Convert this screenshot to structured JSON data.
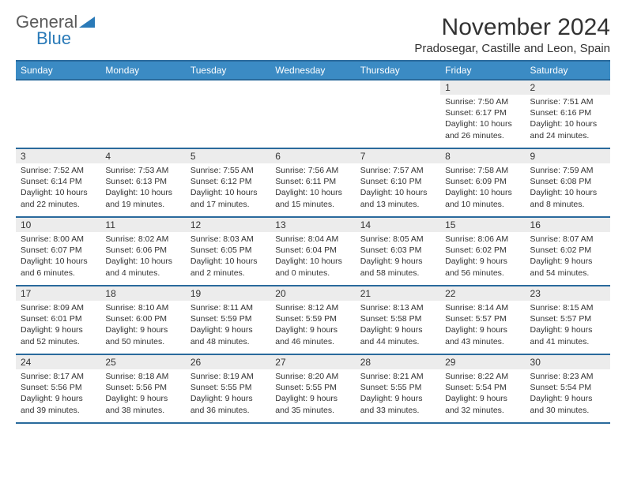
{
  "logo": {
    "line1": "General",
    "line2": "Blue"
  },
  "header": {
    "month_title": "November 2024",
    "location": "Pradosegar, Castille and Leon, Spain"
  },
  "day_headers": [
    "Sunday",
    "Monday",
    "Tuesday",
    "Wednesday",
    "Thursday",
    "Friday",
    "Saturday"
  ],
  "colors": {
    "header_bg": "#3b8bc4",
    "header_border": "#2a6a9c",
    "day_num_bg": "#ececec",
    "text": "#333333",
    "logo_gray": "#5a5a5a",
    "logo_blue": "#2a7ab8"
  },
  "weeks": [
    {
      "nums": [
        "",
        "",
        "",
        "",
        "",
        "1",
        "2"
      ],
      "cells": [
        null,
        null,
        null,
        null,
        null,
        {
          "sunrise": "Sunrise: 7:50 AM",
          "sunset": "Sunset: 6:17 PM",
          "daylight": "Daylight: 10 hours and 26 minutes."
        },
        {
          "sunrise": "Sunrise: 7:51 AM",
          "sunset": "Sunset: 6:16 PM",
          "daylight": "Daylight: 10 hours and 24 minutes."
        }
      ]
    },
    {
      "nums": [
        "3",
        "4",
        "5",
        "6",
        "7",
        "8",
        "9"
      ],
      "cells": [
        {
          "sunrise": "Sunrise: 7:52 AM",
          "sunset": "Sunset: 6:14 PM",
          "daylight": "Daylight: 10 hours and 22 minutes."
        },
        {
          "sunrise": "Sunrise: 7:53 AM",
          "sunset": "Sunset: 6:13 PM",
          "daylight": "Daylight: 10 hours and 19 minutes."
        },
        {
          "sunrise": "Sunrise: 7:55 AM",
          "sunset": "Sunset: 6:12 PM",
          "daylight": "Daylight: 10 hours and 17 minutes."
        },
        {
          "sunrise": "Sunrise: 7:56 AM",
          "sunset": "Sunset: 6:11 PM",
          "daylight": "Daylight: 10 hours and 15 minutes."
        },
        {
          "sunrise": "Sunrise: 7:57 AM",
          "sunset": "Sunset: 6:10 PM",
          "daylight": "Daylight: 10 hours and 13 minutes."
        },
        {
          "sunrise": "Sunrise: 7:58 AM",
          "sunset": "Sunset: 6:09 PM",
          "daylight": "Daylight: 10 hours and 10 minutes."
        },
        {
          "sunrise": "Sunrise: 7:59 AM",
          "sunset": "Sunset: 6:08 PM",
          "daylight": "Daylight: 10 hours and 8 minutes."
        }
      ]
    },
    {
      "nums": [
        "10",
        "11",
        "12",
        "13",
        "14",
        "15",
        "16"
      ],
      "cells": [
        {
          "sunrise": "Sunrise: 8:00 AM",
          "sunset": "Sunset: 6:07 PM",
          "daylight": "Daylight: 10 hours and 6 minutes."
        },
        {
          "sunrise": "Sunrise: 8:02 AM",
          "sunset": "Sunset: 6:06 PM",
          "daylight": "Daylight: 10 hours and 4 minutes."
        },
        {
          "sunrise": "Sunrise: 8:03 AM",
          "sunset": "Sunset: 6:05 PM",
          "daylight": "Daylight: 10 hours and 2 minutes."
        },
        {
          "sunrise": "Sunrise: 8:04 AM",
          "sunset": "Sunset: 6:04 PM",
          "daylight": "Daylight: 10 hours and 0 minutes."
        },
        {
          "sunrise": "Sunrise: 8:05 AM",
          "sunset": "Sunset: 6:03 PM",
          "daylight": "Daylight: 9 hours and 58 minutes."
        },
        {
          "sunrise": "Sunrise: 8:06 AM",
          "sunset": "Sunset: 6:02 PM",
          "daylight": "Daylight: 9 hours and 56 minutes."
        },
        {
          "sunrise": "Sunrise: 8:07 AM",
          "sunset": "Sunset: 6:02 PM",
          "daylight": "Daylight: 9 hours and 54 minutes."
        }
      ]
    },
    {
      "nums": [
        "17",
        "18",
        "19",
        "20",
        "21",
        "22",
        "23"
      ],
      "cells": [
        {
          "sunrise": "Sunrise: 8:09 AM",
          "sunset": "Sunset: 6:01 PM",
          "daylight": "Daylight: 9 hours and 52 minutes."
        },
        {
          "sunrise": "Sunrise: 8:10 AM",
          "sunset": "Sunset: 6:00 PM",
          "daylight": "Daylight: 9 hours and 50 minutes."
        },
        {
          "sunrise": "Sunrise: 8:11 AM",
          "sunset": "Sunset: 5:59 PM",
          "daylight": "Daylight: 9 hours and 48 minutes."
        },
        {
          "sunrise": "Sunrise: 8:12 AM",
          "sunset": "Sunset: 5:59 PM",
          "daylight": "Daylight: 9 hours and 46 minutes."
        },
        {
          "sunrise": "Sunrise: 8:13 AM",
          "sunset": "Sunset: 5:58 PM",
          "daylight": "Daylight: 9 hours and 44 minutes."
        },
        {
          "sunrise": "Sunrise: 8:14 AM",
          "sunset": "Sunset: 5:57 PM",
          "daylight": "Daylight: 9 hours and 43 minutes."
        },
        {
          "sunrise": "Sunrise: 8:15 AM",
          "sunset": "Sunset: 5:57 PM",
          "daylight": "Daylight: 9 hours and 41 minutes."
        }
      ]
    },
    {
      "nums": [
        "24",
        "25",
        "26",
        "27",
        "28",
        "29",
        "30"
      ],
      "cells": [
        {
          "sunrise": "Sunrise: 8:17 AM",
          "sunset": "Sunset: 5:56 PM",
          "daylight": "Daylight: 9 hours and 39 minutes."
        },
        {
          "sunrise": "Sunrise: 8:18 AM",
          "sunset": "Sunset: 5:56 PM",
          "daylight": "Daylight: 9 hours and 38 minutes."
        },
        {
          "sunrise": "Sunrise: 8:19 AM",
          "sunset": "Sunset: 5:55 PM",
          "daylight": "Daylight: 9 hours and 36 minutes."
        },
        {
          "sunrise": "Sunrise: 8:20 AM",
          "sunset": "Sunset: 5:55 PM",
          "daylight": "Daylight: 9 hours and 35 minutes."
        },
        {
          "sunrise": "Sunrise: 8:21 AM",
          "sunset": "Sunset: 5:55 PM",
          "daylight": "Daylight: 9 hours and 33 minutes."
        },
        {
          "sunrise": "Sunrise: 8:22 AM",
          "sunset": "Sunset: 5:54 PM",
          "daylight": "Daylight: 9 hours and 32 minutes."
        },
        {
          "sunrise": "Sunrise: 8:23 AM",
          "sunset": "Sunset: 5:54 PM",
          "daylight": "Daylight: 9 hours and 30 minutes."
        }
      ]
    }
  ]
}
